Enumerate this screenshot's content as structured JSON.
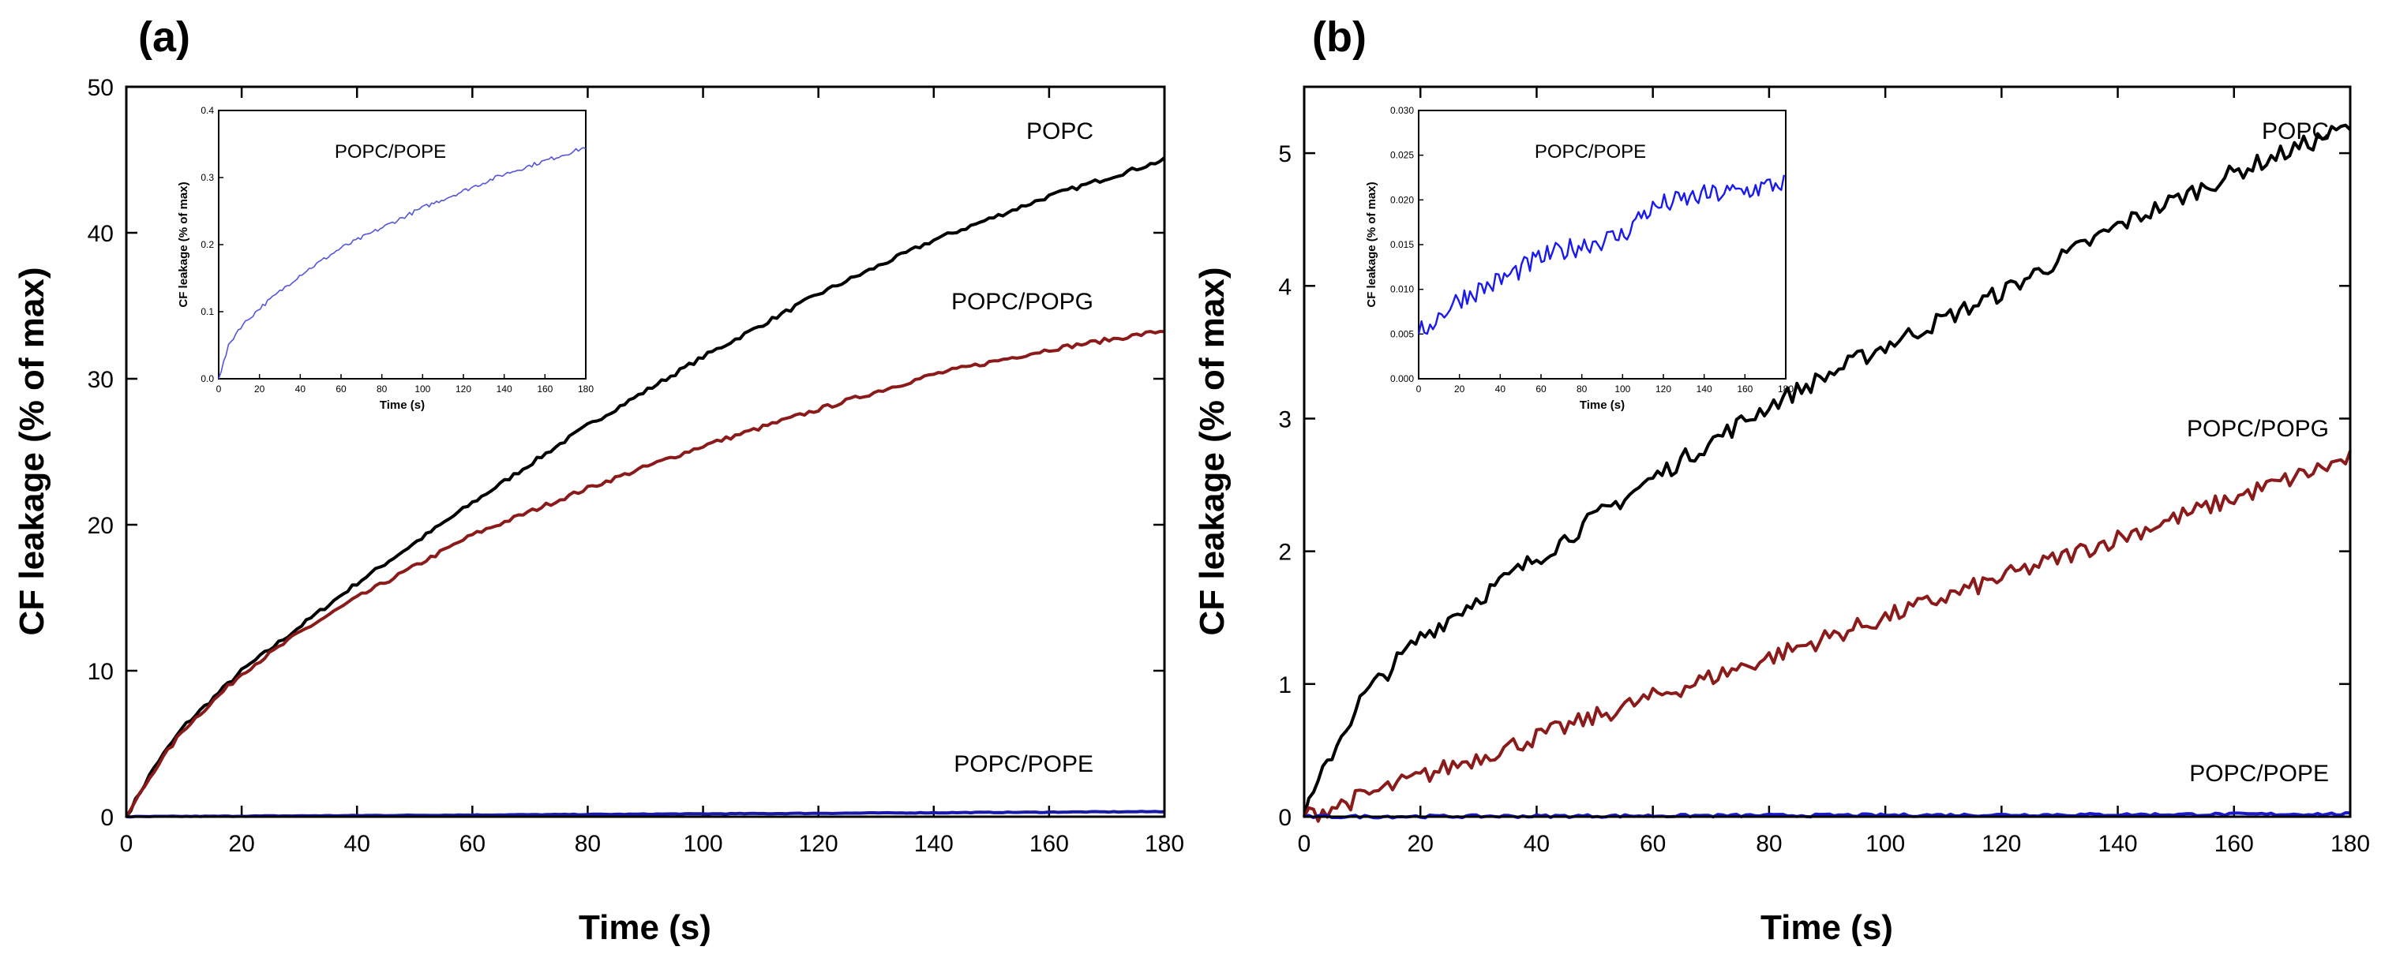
{
  "chart_data": [
    {
      "panel_label": "(a)",
      "type": "line",
      "xlabel": "Time (s)",
      "ylabel": "CF leakage (% of max)",
      "xlim": [
        0,
        180
      ],
      "ylim": [
        0,
        50
      ],
      "xticks": [
        0,
        20,
        40,
        60,
        80,
        100,
        120,
        140,
        160,
        180
      ],
      "yticks": [
        0,
        10,
        20,
        30,
        40,
        50
      ],
      "noise": 0.15,
      "series": [
        {
          "name": "POPC",
          "color": "#000000",
          "x": [
            0,
            5,
            10,
            20,
            30,
            40,
            60,
            80,
            100,
            120,
            140,
            160,
            180
          ],
          "y": [
            0,
            3.5,
            6.2,
            10.0,
            13.0,
            16.0,
            21.5,
            26.8,
            31.5,
            35.8,
            39.5,
            42.5,
            45.0
          ]
        },
        {
          "name": "POPC/POPG",
          "color": "#8b1a1a",
          "x": [
            0,
            5,
            10,
            20,
            30,
            40,
            60,
            80,
            100,
            120,
            140,
            160,
            180
          ],
          "y": [
            0,
            3.3,
            6.0,
            9.8,
            12.6,
            15.0,
            19.3,
            22.5,
            25.4,
            27.9,
            30.3,
            32.0,
            33.3
          ]
        },
        {
          "name": "POPC/POPE",
          "color": "#1a1aa8",
          "x": [
            0,
            180
          ],
          "y": [
            0.0,
            0.35
          ]
        }
      ],
      "inset": {
        "title": "POPC/POPE",
        "xlabel": "Time (s)",
        "ylabel": "CF leakage (% of max)",
        "xlim": [
          0,
          180
        ],
        "ylim": [
          0,
          0.4
        ],
        "xticks": [
          0,
          20,
          40,
          60,
          80,
          100,
          120,
          140,
          160,
          180
        ],
        "yticks": [
          0.0,
          0.1,
          0.2,
          0.3,
          0.4
        ],
        "ytick_labels": [
          "0.0",
          "0.1",
          "0.2",
          "0.3",
          "0.4"
        ],
        "noise": 0.003,
        "color": "#5555dd",
        "x": [
          0,
          5,
          10,
          20,
          40,
          60,
          80,
          100,
          120,
          140,
          160,
          180
        ],
        "y": [
          0,
          0.05,
          0.075,
          0.105,
          0.155,
          0.195,
          0.225,
          0.255,
          0.28,
          0.305,
          0.325,
          0.345
        ]
      }
    },
    {
      "panel_label": "(b)",
      "type": "line",
      "xlabel": "Time (s)",
      "ylabel": "CF leakage (% of max)",
      "xlim": [
        0,
        180
      ],
      "ylim": [
        0,
        5.5
      ],
      "xticks": [
        0,
        20,
        40,
        60,
        80,
        100,
        120,
        140,
        160,
        180
      ],
      "yticks": [
        0,
        1,
        2,
        3,
        4,
        5
      ],
      "noise": 0.07,
      "series": [
        {
          "name": "POPC",
          "color": "#000000",
          "x": [
            0,
            5,
            10,
            20,
            30,
            40,
            60,
            80,
            100,
            120,
            140,
            160,
            180
          ],
          "y": [
            0,
            0.5,
            0.9,
            1.35,
            1.65,
            1.95,
            2.55,
            3.1,
            3.55,
            3.95,
            4.45,
            4.85,
            5.2
          ]
        },
        {
          "name": "POPC/POPG",
          "color": "#8b1a1a",
          "x": [
            0,
            10,
            20,
            40,
            60,
            80,
            100,
            120,
            140,
            160,
            180
          ],
          "y": [
            0,
            0.15,
            0.3,
            0.6,
            0.9,
            1.2,
            1.5,
            1.8,
            2.1,
            2.4,
            2.7
          ]
        },
        {
          "name": "POPC/POPE",
          "color": "#1a1acc",
          "x": [
            0,
            180
          ],
          "y": [
            0.0,
            0.02
          ]
        }
      ],
      "inset": {
        "title": "POPC/POPE",
        "xlabel": "Time (s)",
        "ylabel": "CF leakage (% of max)",
        "xlim": [
          0,
          180
        ],
        "ylim": [
          0,
          0.03
        ],
        "xticks": [
          0,
          20,
          40,
          60,
          80,
          100,
          120,
          140,
          160,
          180
        ],
        "yticks": [
          0.0,
          0.005,
          0.01,
          0.015,
          0.02,
          0.025,
          0.03
        ],
        "ytick_labels": [
          "0.000",
          "0.005",
          "0.010",
          "0.015",
          "0.020",
          "0.025",
          "0.030"
        ],
        "noise": 0.0012,
        "color": "#1a1aee",
        "x": [
          0,
          10,
          20,
          40,
          60,
          80,
          100,
          110,
          120,
          140,
          160,
          180
        ],
        "y": [
          0.005,
          0.007,
          0.009,
          0.011,
          0.0135,
          0.015,
          0.016,
          0.0185,
          0.0195,
          0.0205,
          0.021,
          0.022
        ]
      }
    }
  ]
}
